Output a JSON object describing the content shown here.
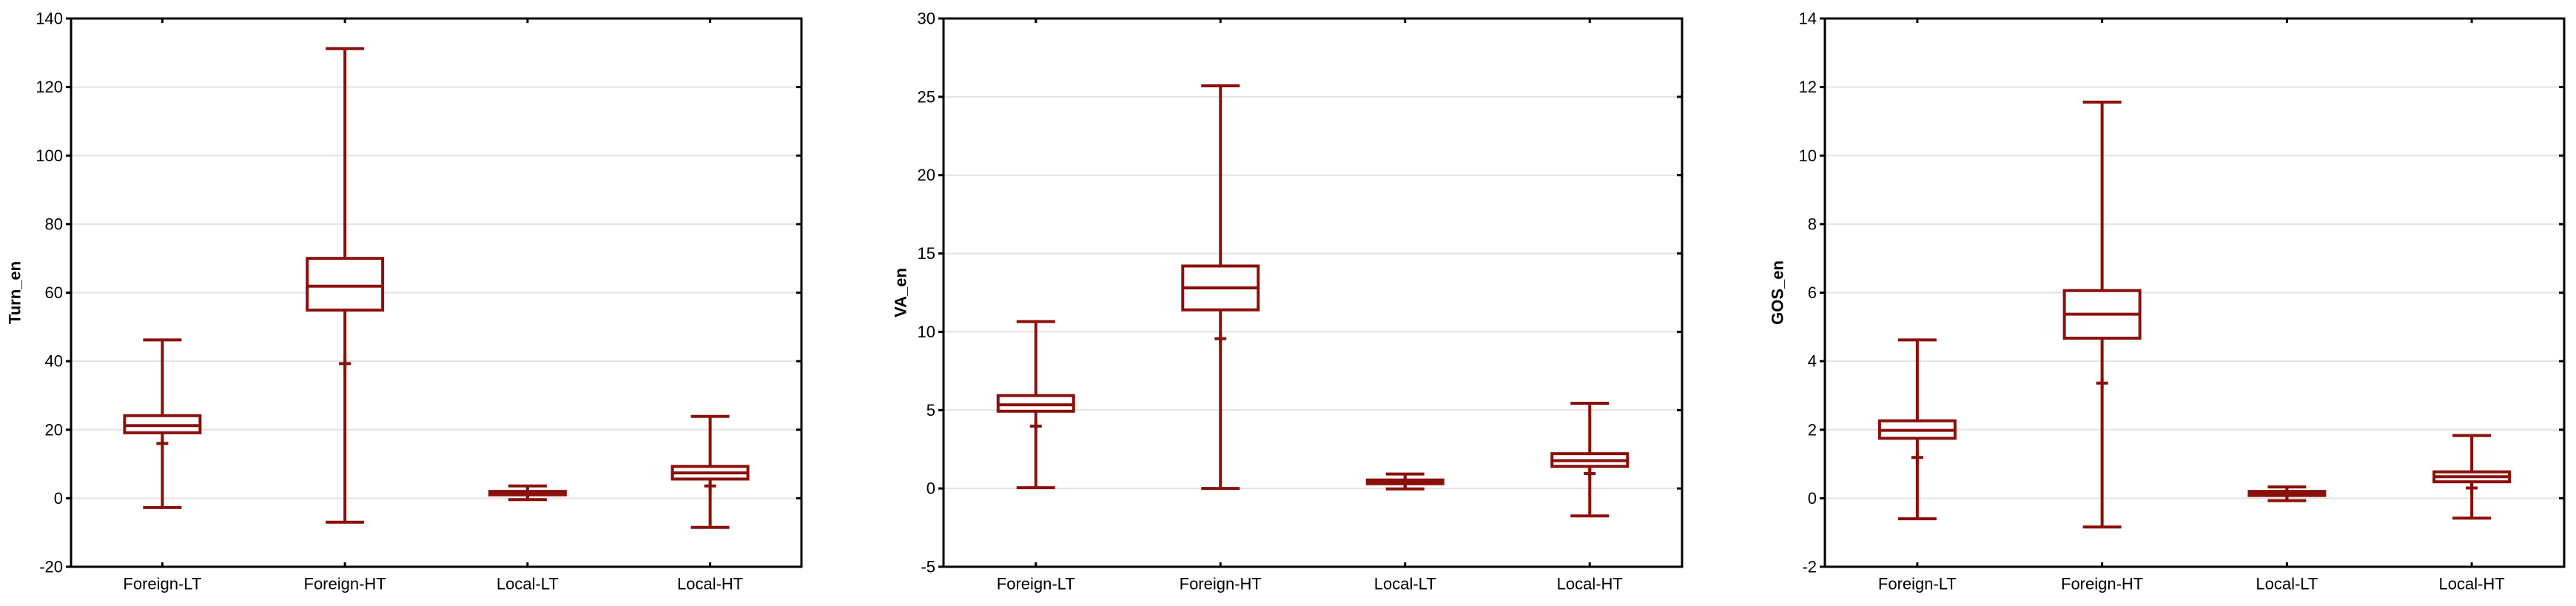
{
  "colors": {
    "box_stroke": "#8A100B",
    "box_fill": "#FFFFFF",
    "grid": "#E2E2E2",
    "axis": "#000000",
    "text": "#000000",
    "background": "#FFFFFF"
  },
  "chart_data": [
    {
      "type": "box",
      "title": "",
      "ylabel": "Turn_en",
      "ylim": [
        -20,
        140
      ],
      "ytick_step": 20,
      "grid": true,
      "categories": [
        "Foreign-LT",
        "Foreign-HT",
        "Local-LT",
        "Local-HT"
      ],
      "boxes": [
        {
          "category": "Foreign-LT",
          "whisker_low": -2.7,
          "q1": 19.1,
          "median": 21.2,
          "q3": 24.1,
          "whisker_high": 46.2,
          "mean": 16.0
        },
        {
          "category": "Foreign-HT",
          "whisker_low": -7.0,
          "q1": 54.9,
          "median": 61.9,
          "q3": 70.0,
          "whisker_high": 131.2,
          "mean": 39.3
        },
        {
          "category": "Local-LT",
          "whisker_low": -0.4,
          "q1": 1.0,
          "median": 1.6,
          "q3": 2.0,
          "whisker_high": 3.6,
          "mean": 1.5
        },
        {
          "category": "Local-HT",
          "whisker_low": -8.5,
          "q1": 5.6,
          "median": 7.4,
          "q3": 9.3,
          "whisker_high": 23.9,
          "mean": 3.6
        }
      ]
    },
    {
      "type": "box",
      "title": "",
      "ylabel": "VA_en",
      "ylim": [
        -5,
        30
      ],
      "ytick_step": 5,
      "grid": true,
      "categories": [
        "Foreign-LT",
        "Foreign-HT",
        "Local-LT",
        "Local-HT"
      ],
      "boxes": [
        {
          "category": "Foreign-LT",
          "whisker_low": 0.05,
          "q1": 4.93,
          "median": 5.34,
          "q3": 5.93,
          "whisker_high": 10.65,
          "mean": 3.98
        },
        {
          "category": "Foreign-HT",
          "whisker_low": 0.0,
          "q1": 11.4,
          "median": 12.8,
          "q3": 14.2,
          "whisker_high": 25.7,
          "mean": 9.56
        },
        {
          "category": "Local-LT",
          "whisker_low": -0.03,
          "q1": 0.3,
          "median": 0.43,
          "q3": 0.54,
          "whisker_high": 0.92,
          "mean": 0.33
        },
        {
          "category": "Local-HT",
          "whisker_low": -1.75,
          "q1": 1.41,
          "median": 1.78,
          "q3": 2.22,
          "whisker_high": 5.44,
          "mean": 0.95
        }
      ]
    },
    {
      "type": "box",
      "title": "",
      "ylabel": "GOS_en",
      "ylim": [
        -2,
        14
      ],
      "ytick_step": 2,
      "grid": true,
      "categories": [
        "Foreign-LT",
        "Foreign-HT",
        "Local-LT",
        "Local-HT"
      ],
      "boxes": [
        {
          "category": "Foreign-LT",
          "whisker_low": -0.6,
          "q1": 1.75,
          "median": 1.98,
          "q3": 2.26,
          "whisker_high": 4.62,
          "mean": 1.19
        },
        {
          "category": "Foreign-HT",
          "whisker_low": -0.84,
          "q1": 4.67,
          "median": 5.37,
          "q3": 6.06,
          "whisker_high": 11.56,
          "mean": 3.36
        },
        {
          "category": "Local-LT",
          "whisker_low": -0.07,
          "q1": 0.08,
          "median": 0.14,
          "q3": 0.2,
          "whisker_high": 0.33,
          "mean": 0.12
        },
        {
          "category": "Local-HT",
          "whisker_low": -0.58,
          "q1": 0.48,
          "median": 0.63,
          "q3": 0.77,
          "whisker_high": 1.83,
          "mean": 0.3
        }
      ]
    }
  ]
}
